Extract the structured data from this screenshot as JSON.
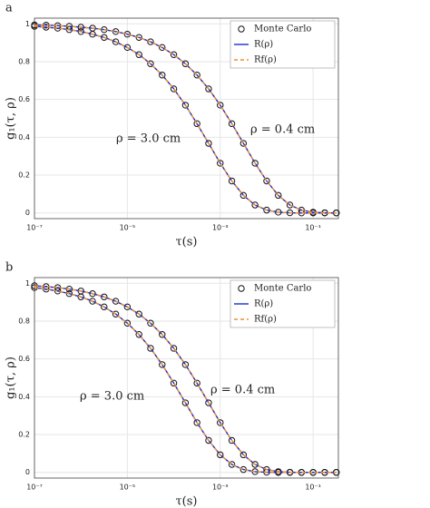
{
  "chart_data": [
    {
      "type": "line",
      "label": "a",
      "xlabel": "τ(s)",
      "ylabel": "g₁(τ, ρ)",
      "xscale": "log",
      "grid": true,
      "legend": "top-right",
      "xlim": [
        1e-07,
        0.35
      ],
      "ylim": [
        -0.03,
        1.03
      ],
      "xticks": [
        {
          "value": 1e-07,
          "label": "10⁻⁷"
        },
        {
          "value": 1e-05,
          "label": "10⁻⁵"
        },
        {
          "value": 0.001,
          "label": "10⁻³"
        },
        {
          "value": 0.1,
          "label": "10⁻¹"
        }
      ],
      "yticks": [
        0,
        0.2,
        0.4,
        0.6,
        0.8,
        1
      ],
      "x": [
        1e-07,
        1.78e-07,
        3.16e-07,
        5.62e-07,
        1e-06,
        1.78e-06,
        3.16e-06,
        5.62e-06,
        1e-05,
        1.78e-05,
        3.16e-05,
        5.62e-05,
        0.0001,
        0.000178,
        0.000316,
        0.000562,
        0.001,
        0.00178,
        0.00316,
        0.00562,
        0.01,
        0.0178,
        0.0316,
        0.0562,
        0.1,
        0.178,
        0.316
      ],
      "annotations": [
        "ρ = 3.0 cm",
        "ρ = 0.4 cm"
      ],
      "series": [
        {
          "name": "Monte Carlo",
          "color": "#111111",
          "style": "markers",
          "values": [
            [
              0.987,
              0.982,
              0.977,
              0.969,
              0.959,
              0.945,
              0.928,
              0.905,
              0.875,
              0.837,
              0.789,
              0.729,
              0.656,
              0.57,
              0.472,
              0.368,
              0.263,
              0.169,
              0.093,
              0.042,
              0.015,
              0.004,
              0.001,
              0,
              0,
              0,
              0
            ],
            [
              0.994,
              0.993,
              0.99,
              0.987,
              0.982,
              0.977,
              0.969,
              0.959,
              0.945,
              0.928,
              0.905,
              0.875,
              0.837,
              0.789,
              0.729,
              0.656,
              0.57,
              0.472,
              0.368,
              0.263,
              0.169,
              0.093,
              0.042,
              0.015,
              0.004,
              0.001,
              0
            ]
          ]
        },
        {
          "name": "R(ρ)",
          "color": "#1a2fc8",
          "style": "solid",
          "values": [
            [
              0.987,
              0.982,
              0.977,
              0.969,
              0.959,
              0.945,
              0.928,
              0.905,
              0.875,
              0.837,
              0.789,
              0.729,
              0.656,
              0.57,
              0.472,
              0.368,
              0.263,
              0.169,
              0.093,
              0.042,
              0.015,
              0.004,
              0.001,
              0,
              0,
              0,
              0
            ],
            [
              0.994,
              0.993,
              0.99,
              0.987,
              0.982,
              0.977,
              0.969,
              0.959,
              0.945,
              0.928,
              0.905,
              0.875,
              0.837,
              0.789,
              0.729,
              0.656,
              0.57,
              0.472,
              0.368,
              0.263,
              0.169,
              0.093,
              0.042,
              0.015,
              0.004,
              0.001,
              0
            ]
          ]
        },
        {
          "name": "Rf(ρ)",
          "color": "#f28e2b",
          "style": "dashed",
          "values": [
            [
              0.987,
              0.982,
              0.977,
              0.969,
              0.959,
              0.945,
              0.928,
              0.905,
              0.875,
              0.837,
              0.789,
              0.729,
              0.656,
              0.57,
              0.472,
              0.368,
              0.263,
              0.169,
              0.093,
              0.042,
              0.015,
              0.004,
              0.001,
              0,
              0,
              0,
              0
            ],
            [
              0.994,
              0.993,
              0.99,
              0.987,
              0.982,
              0.977,
              0.969,
              0.959,
              0.945,
              0.928,
              0.905,
              0.875,
              0.837,
              0.789,
              0.729,
              0.656,
              0.57,
              0.472,
              0.368,
              0.263,
              0.169,
              0.093,
              0.042,
              0.015,
              0.004,
              0.001,
              0
            ]
          ]
        }
      ]
    },
    {
      "type": "line",
      "label": "b",
      "xlabel": "τ(s)",
      "ylabel": "g₁(τ, ρ)",
      "xscale": "log",
      "grid": true,
      "legend": "top-right",
      "xlim": [
        1e-07,
        0.35
      ],
      "ylim": [
        -0.03,
        1.03
      ],
      "xticks": [
        {
          "value": 1e-07,
          "label": "10⁻⁷"
        },
        {
          "value": 1e-05,
          "label": "10⁻⁵"
        },
        {
          "value": 0.001,
          "label": "10⁻³"
        },
        {
          "value": 0.1,
          "label": "10⁻¹"
        }
      ],
      "yticks": [
        0,
        0.2,
        0.4,
        0.6,
        0.8,
        1
      ],
      "x": [
        1e-07,
        1.78e-07,
        3.16e-07,
        5.62e-07,
        1e-06,
        1.78e-06,
        3.16e-06,
        5.62e-06,
        1e-05,
        1.78e-05,
        3.16e-05,
        5.62e-05,
        0.0001,
        0.000178,
        0.000316,
        0.000562,
        0.001,
        0.00178,
        0.00316,
        0.00562,
        0.01,
        0.0178,
        0.0316,
        0.0562,
        0.1,
        0.178,
        0.316
      ],
      "annotations": [
        "ρ = 3.0 cm",
        "ρ = 0.4 cm"
      ],
      "series": [
        {
          "name": "Monte Carlo",
          "color": "#111111",
          "style": "markers",
          "values": [
            [
              0.977,
              0.969,
              0.959,
              0.945,
              0.928,
              0.905,
              0.875,
              0.837,
              0.789,
              0.729,
              0.656,
              0.57,
              0.472,
              0.368,
              0.263,
              0.169,
              0.093,
              0.042,
              0.015,
              0.004,
              0.001,
              0,
              0,
              0,
              0,
              0,
              0
            ],
            [
              0.987,
              0.982,
              0.977,
              0.969,
              0.959,
              0.945,
              0.928,
              0.905,
              0.875,
              0.837,
              0.789,
              0.729,
              0.656,
              0.57,
              0.472,
              0.368,
              0.263,
              0.169,
              0.093,
              0.042,
              0.015,
              0.004,
              0.001,
              0,
              0,
              0,
              0
            ]
          ]
        },
        {
          "name": "R(ρ)",
          "color": "#1a2fc8",
          "style": "solid",
          "values": [
            [
              0.977,
              0.969,
              0.959,
              0.945,
              0.928,
              0.905,
              0.875,
              0.837,
              0.789,
              0.729,
              0.656,
              0.57,
              0.472,
              0.368,
              0.263,
              0.169,
              0.093,
              0.042,
              0.015,
              0.004,
              0.001,
              0,
              0,
              0,
              0,
              0,
              0
            ],
            [
              0.987,
              0.982,
              0.977,
              0.969,
              0.959,
              0.945,
              0.928,
              0.905,
              0.875,
              0.837,
              0.789,
              0.729,
              0.656,
              0.57,
              0.472,
              0.368,
              0.263,
              0.169,
              0.093,
              0.042,
              0.015,
              0.004,
              0.001,
              0,
              0,
              0,
              0
            ]
          ]
        },
        {
          "name": "Rf(ρ)",
          "color": "#f28e2b",
          "style": "dashed",
          "values": [
            [
              0.977,
              0.969,
              0.959,
              0.945,
              0.928,
              0.905,
              0.875,
              0.837,
              0.789,
              0.729,
              0.656,
              0.57,
              0.472,
              0.368,
              0.263,
              0.169,
              0.093,
              0.042,
              0.015,
              0.004,
              0.001,
              0,
              0,
              0,
              0,
              0,
              0
            ],
            [
              0.987,
              0.982,
              0.977,
              0.969,
              0.959,
              0.945,
              0.928,
              0.905,
              0.875,
              0.837,
              0.789,
              0.729,
              0.656,
              0.57,
              0.472,
              0.368,
              0.263,
              0.169,
              0.093,
              0.042,
              0.015,
              0.004,
              0.001,
              0,
              0,
              0,
              0
            ]
          ]
        }
      ]
    }
  ]
}
